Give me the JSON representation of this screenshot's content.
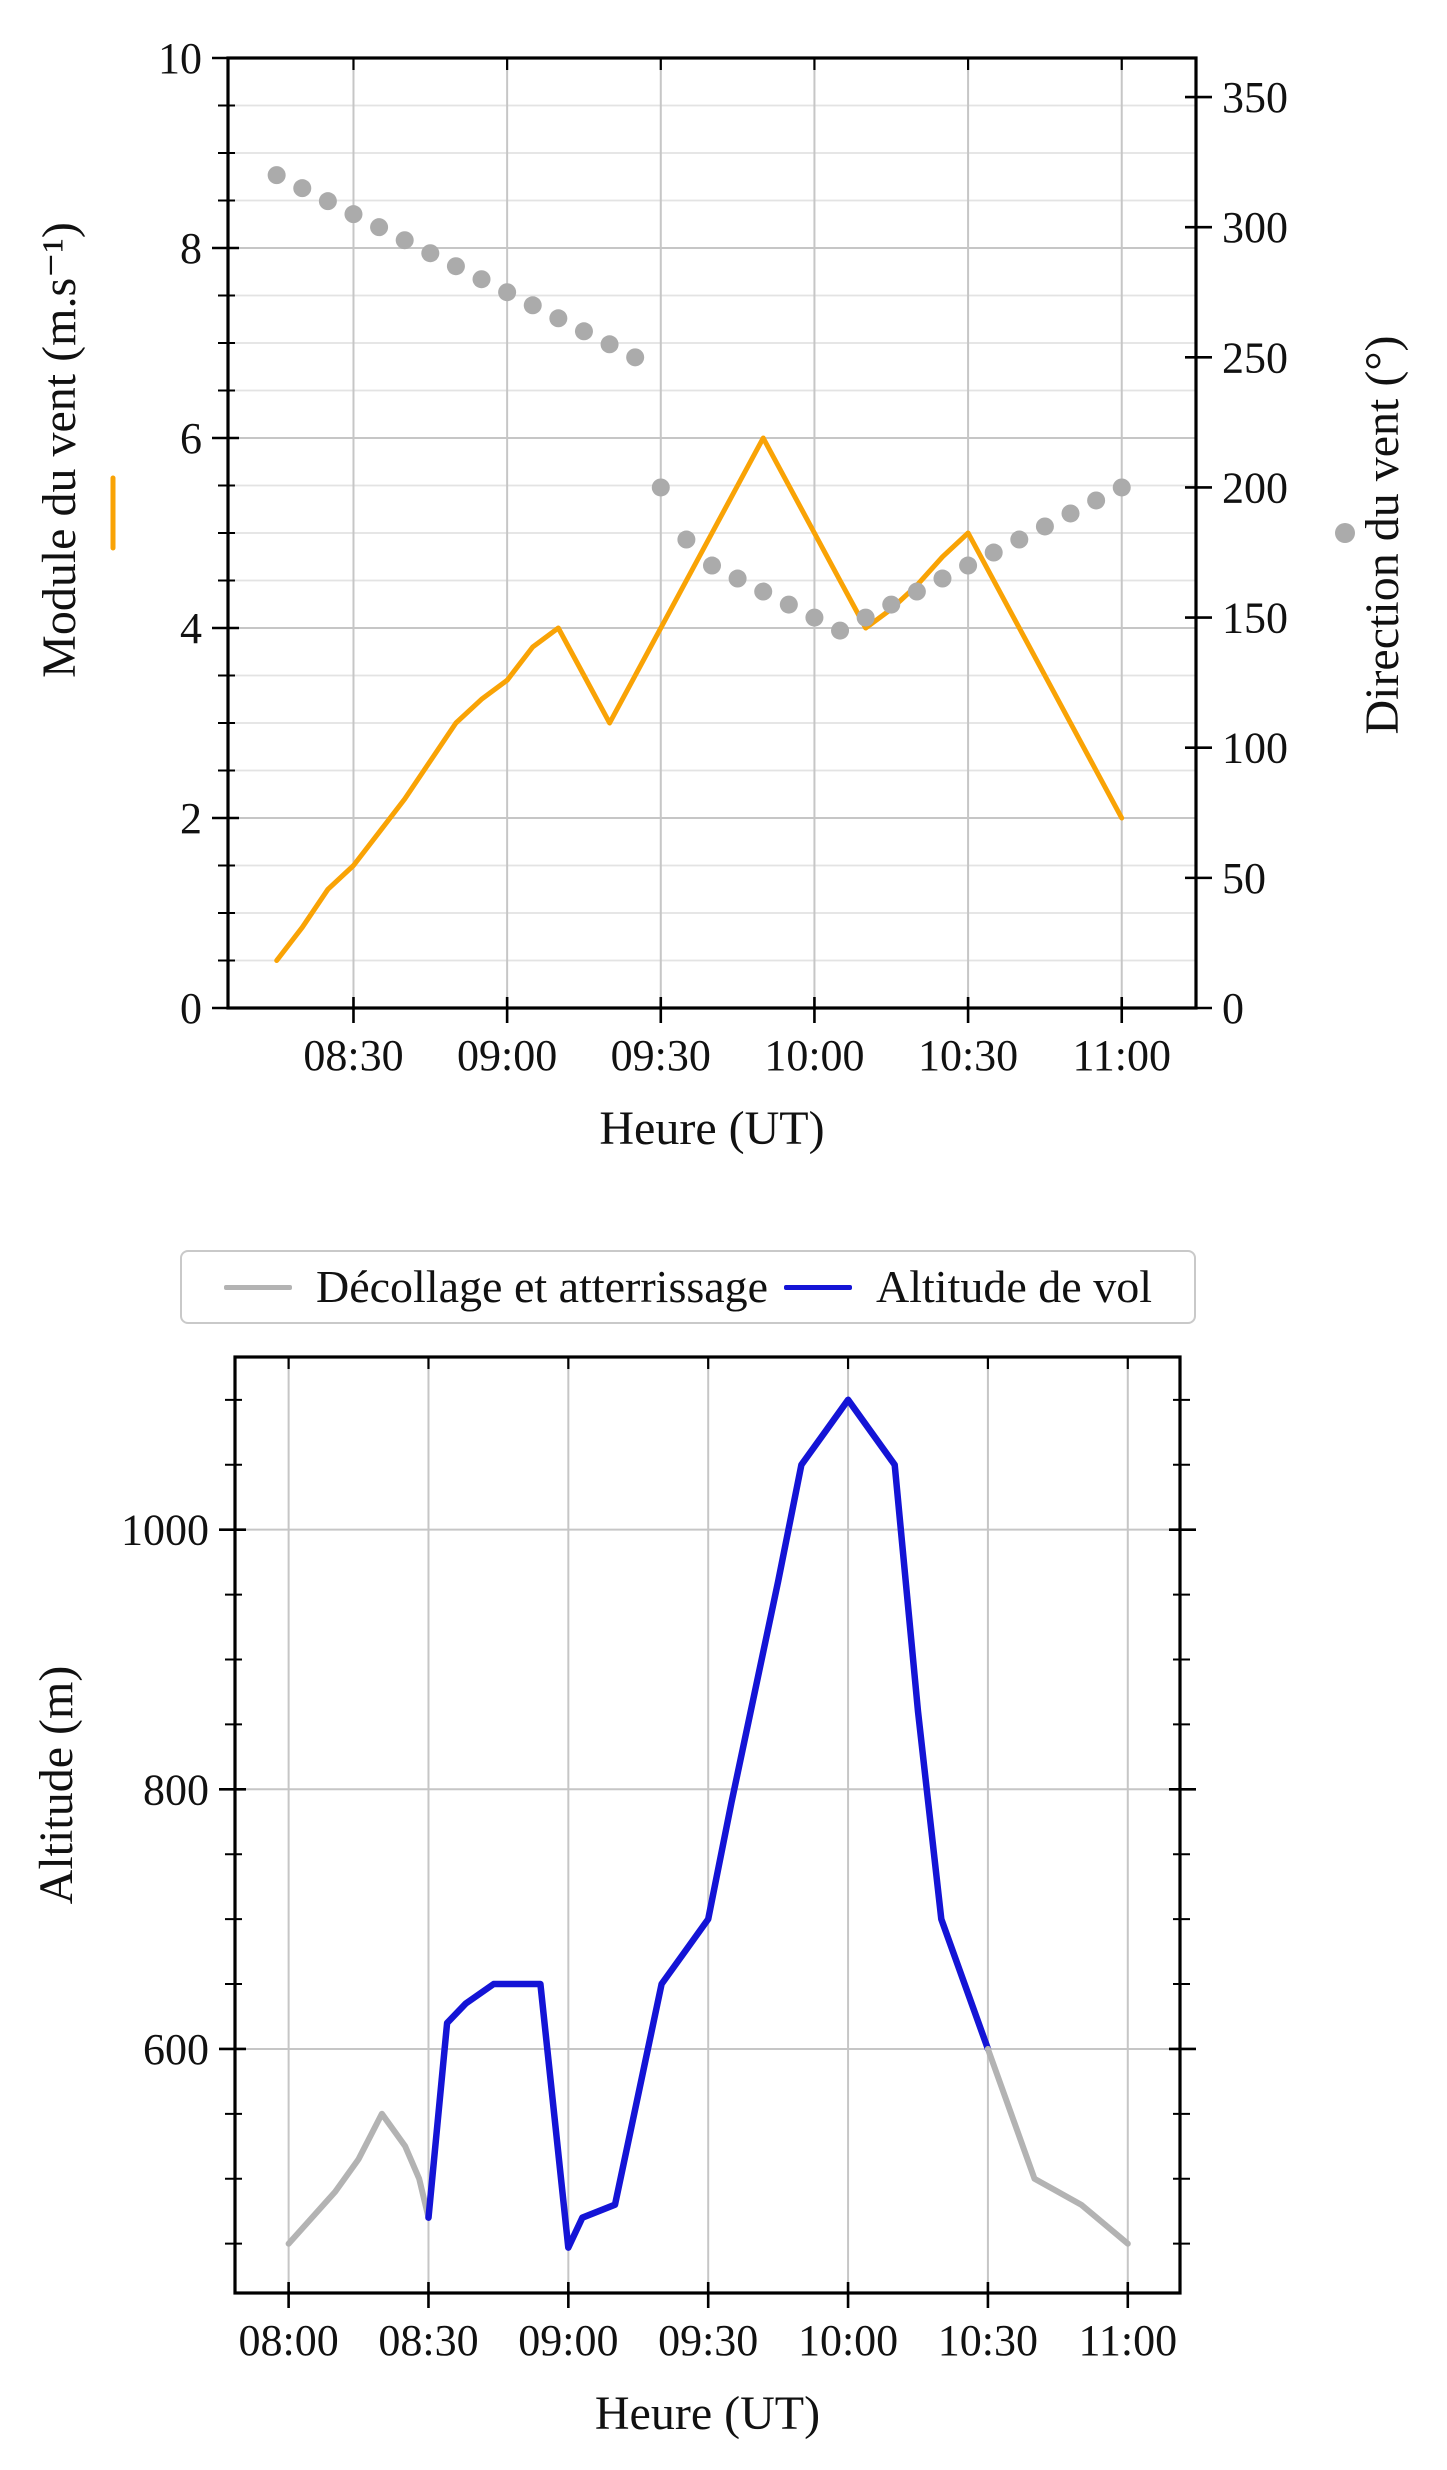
{
  "colors": {
    "module_orange": "#F9A305",
    "direction_gray": "#ABABAB",
    "ground_gray": "#B3B3B3",
    "flight_blue": "#1414D6",
    "grid_minor": "#E3E3E3",
    "grid_major": "#C6C6C6",
    "spine": "#000000"
  },
  "legend": {
    "items": [
      {
        "label": "Décollage et atterrissage",
        "color": "#B3B3B3"
      },
      {
        "label": "Altitude de vol",
        "color": "#1414D6"
      }
    ]
  },
  "chart_data": [
    {
      "type": "line+scatter",
      "xlabel": "Heure (UT)",
      "x_range": [
        485.5,
        674.5
      ],
      "x_ticks": [
        {
          "m": 510,
          "label": "08:30"
        },
        {
          "m": 540,
          "label": "09:00"
        },
        {
          "m": 570,
          "label": "09:30"
        },
        {
          "m": 600,
          "label": "10:00"
        },
        {
          "m": 630,
          "label": "10:30"
        },
        {
          "m": 660,
          "label": "11:00"
        }
      ],
      "left_axis": {
        "label": "Module du vent (m.s⁻¹)",
        "range": [
          0,
          10
        ],
        "majors": [
          0,
          2,
          4,
          6,
          8,
          10
        ],
        "minor_step": 0.5,
        "marker": "line",
        "color": "#F9A305"
      },
      "right_axis": {
        "label": "Direction du vent (°)",
        "range": [
          0,
          365
        ],
        "majors": [
          0,
          50,
          100,
          150,
          200,
          250,
          300,
          350
        ],
        "marker": "dot",
        "color": "#ABABAB"
      },
      "series": [
        {
          "name": "Module du vent",
          "type": "line",
          "axis": "left",
          "color": "#F9A305",
          "width": 5,
          "points": [
            [
              495,
              0.5
            ],
            [
              500,
              0.85
            ],
            [
              505,
              1.25
            ],
            [
              510,
              1.5
            ],
            [
              515,
              1.85
            ],
            [
              520,
              2.2
            ],
            [
              525,
              2.6
            ],
            [
              530,
              3.0
            ],
            [
              535,
              3.25
            ],
            [
              540,
              3.45
            ],
            [
              545,
              3.8
            ],
            [
              550,
              4.0
            ],
            [
              555,
              3.5
            ],
            [
              560,
              3.0
            ],
            [
              565,
              3.5
            ],
            [
              570,
              4.0
            ],
            [
              575,
              4.5
            ],
            [
              580,
              5.0
            ],
            [
              585,
              5.5
            ],
            [
              590,
              6.0
            ],
            [
              595,
              5.5
            ],
            [
              600,
              5.0
            ],
            [
              605,
              4.5
            ],
            [
              610,
              4.0
            ],
            [
              615,
              4.2
            ],
            [
              620,
              4.45
            ],
            [
              625,
              4.75
            ],
            [
              630,
              5.0
            ],
            [
              635,
              4.5
            ],
            [
              640,
              4.0
            ],
            [
              645,
              3.5
            ],
            [
              650,
              3.0
            ],
            [
              655,
              2.5
            ],
            [
              660,
              2.0
            ]
          ]
        },
        {
          "name": "Direction du vent",
          "type": "scatter",
          "axis": "right",
          "color": "#ABABAB",
          "radius": 9,
          "points": [
            [
              495,
              320
            ],
            [
              500,
              315
            ],
            [
              505,
              310
            ],
            [
              510,
              305
            ],
            [
              515,
              300
            ],
            [
              520,
              295
            ],
            [
              525,
              290
            ],
            [
              530,
              285
            ],
            [
              535,
              280
            ],
            [
              540,
              275
            ],
            [
              545,
              270
            ],
            [
              550,
              265
            ],
            [
              555,
              260
            ],
            [
              560,
              255
            ],
            [
              565,
              250
            ],
            [
              570,
              200
            ],
            [
              575,
              180
            ],
            [
              580,
              170
            ],
            [
              585,
              165
            ],
            [
              590,
              160
            ],
            [
              595,
              155
            ],
            [
              600,
              150
            ],
            [
              605,
              145
            ],
            [
              610,
              150
            ],
            [
              615,
              155
            ],
            [
              620,
              160
            ],
            [
              625,
              165
            ],
            [
              630,
              170
            ],
            [
              635,
              175
            ],
            [
              640,
              180
            ],
            [
              645,
              185
            ],
            [
              650,
              190
            ],
            [
              655,
              195
            ],
            [
              660,
              200
            ]
          ]
        }
      ]
    },
    {
      "type": "line",
      "xlabel": "Heure (UT)",
      "ylabel": "Altitude (m)",
      "x_range": [
        468.5,
        671.2
      ],
      "x_ticks": [
        {
          "m": 480,
          "label": "08:00"
        },
        {
          "m": 510,
          "label": "08:30"
        },
        {
          "m": 540,
          "label": "09:00"
        },
        {
          "m": 570,
          "label": "09:30"
        },
        {
          "m": 600,
          "label": "10:00"
        },
        {
          "m": 630,
          "label": "10:30"
        },
        {
          "m": 660,
          "label": "11:00"
        }
      ],
      "y_range": [
        412,
        1133
      ],
      "y_majors": [
        600,
        800,
        1000
      ],
      "y_minor_step": 50,
      "series": [
        {
          "name": "Décollage",
          "color": "#B3B3B3",
          "width": 6,
          "points": [
            [
              480,
              450
            ],
            [
              485,
              470
            ],
            [
              490,
              490
            ],
            [
              495,
              515
            ],
            [
              500,
              550
            ],
            [
              505,
              525
            ],
            [
              508,
              500
            ],
            [
              510,
              470
            ]
          ]
        },
        {
          "name": "Altitude de vol",
          "color": "#1414D6",
          "width": 6.5,
          "points": [
            [
              510,
              470
            ],
            [
              514,
              620
            ],
            [
              518,
              635
            ],
            [
              524,
              650
            ],
            [
              534,
              650
            ],
            [
              540,
              447
            ],
            [
              543,
              470
            ],
            [
              550,
              480
            ],
            [
              555,
              565
            ],
            [
              560,
              650
            ],
            [
              565,
              675
            ],
            [
              570,
              700
            ],
            [
              575,
              790
            ],
            [
              580,
              875
            ],
            [
              585,
              960
            ],
            [
              590,
              1050
            ],
            [
              595,
              1075
            ],
            [
              600,
              1100
            ],
            [
              605,
              1075
            ],
            [
              610,
              1050
            ],
            [
              615,
              860
            ],
            [
              620,
              700
            ],
            [
              625,
              650
            ],
            [
              630,
              600
            ]
          ]
        },
        {
          "name": "Atterrissage",
          "color": "#B3B3B3",
          "width": 6,
          "points": [
            [
              630,
              600
            ],
            [
              635,
              550
            ],
            [
              640,
              500
            ],
            [
              645,
              490
            ],
            [
              650,
              480
            ],
            [
              655,
              465
            ],
            [
              660,
              450
            ]
          ]
        }
      ]
    }
  ]
}
